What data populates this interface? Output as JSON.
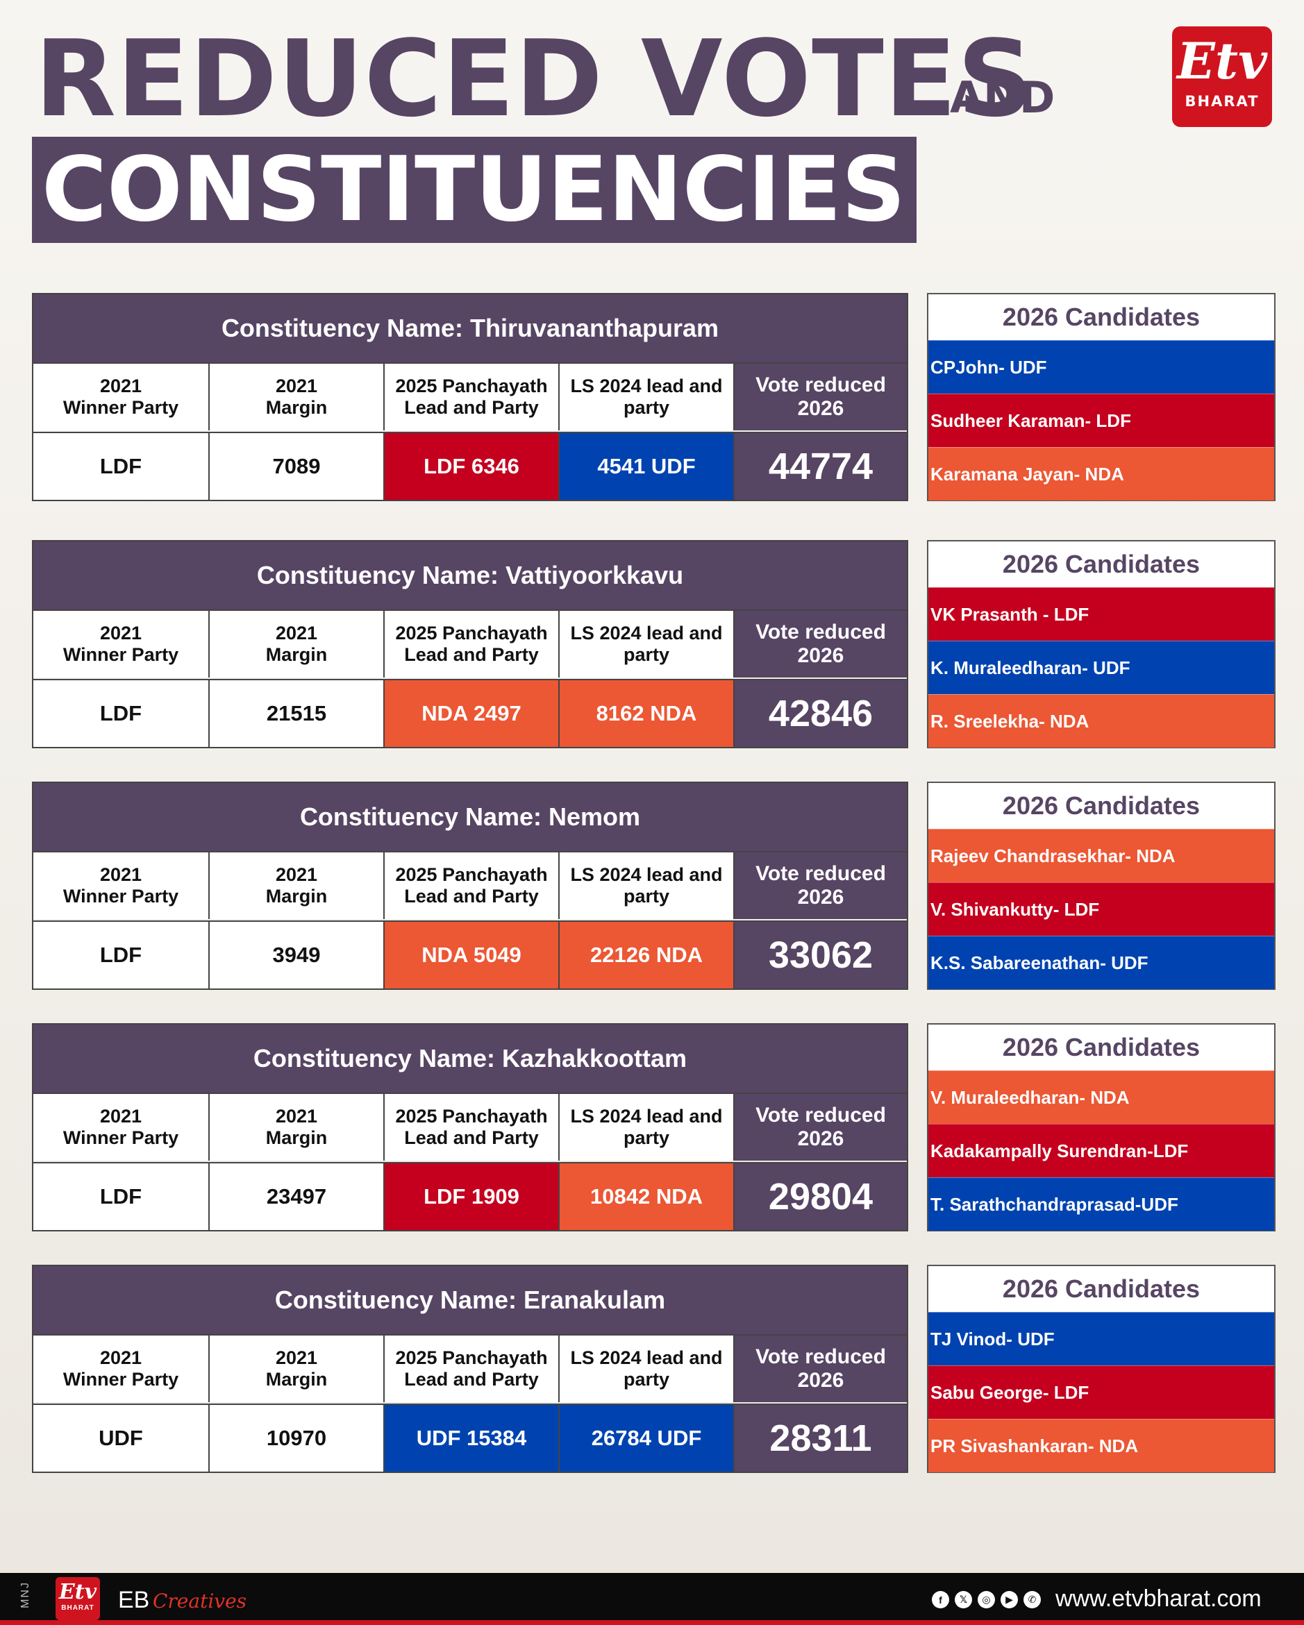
{
  "title": {
    "line1": "REDUCED VOTES",
    "and": "AND",
    "line2": "CONSTITUENCIES"
  },
  "logo": {
    "mark": "Etv",
    "word": "BHARAT"
  },
  "headers": {
    "winner": "2021\nWinner Party",
    "margin": "2021\nMargin",
    "panchayath": "2025 Panchayath\nLead and Party",
    "ls": "LS 2024 lead and\nparty",
    "vote": "Vote reduced\n2026",
    "candidates": "2026 Candidates"
  },
  "colors": {
    "ldf": "#c4001e",
    "udf": "#0043b0",
    "nda": "#ec5734",
    "purple": "#574564"
  },
  "constituencies": [
    {
      "name": "Constituency Name: Thiruvananthapuram",
      "winner": "LDF",
      "margin": "7089",
      "panchayath": "LDF 6346",
      "panchayath_party": "ldf",
      "ls": "4541 UDF",
      "ls_party": "udf",
      "vote": "44774",
      "candidates": [
        {
          "name": "CPJohn- UDF",
          "party": "udf"
        },
        {
          "name": "Sudheer Karaman- LDF",
          "party": "ldf"
        },
        {
          "name": "Karamana Jayan- NDA",
          "party": "nda"
        }
      ]
    },
    {
      "name": "Constituency Name: Vattiyoorkkavu",
      "winner": "LDF",
      "margin": "21515",
      "panchayath": "NDA 2497",
      "panchayath_party": "nda",
      "ls": "8162 NDA",
      "ls_party": "nda",
      "vote": "42846",
      "candidates": [
        {
          "name": "VK Prasanth - LDF",
          "party": "ldf"
        },
        {
          "name": "K. Muraleedharan- UDF",
          "party": "udf"
        },
        {
          "name": "R. Sreelekha- NDA",
          "party": "nda"
        }
      ]
    },
    {
      "name": "Constituency Name: Nemom",
      "winner": "LDF",
      "margin": "3949",
      "panchayath": "NDA 5049",
      "panchayath_party": "nda",
      "ls": "22126 NDA",
      "ls_party": "nda",
      "vote": "33062",
      "candidates": [
        {
          "name": "Rajeev Chandrasekhar- NDA",
          "party": "nda"
        },
        {
          "name": "V. Shivankutty- LDF",
          "party": "ldf"
        },
        {
          "name": "K.S. Sabareenathan- UDF",
          "party": "udf"
        }
      ]
    },
    {
      "name": "Constituency Name: Kazhakkoottam",
      "winner": "LDF",
      "margin": "23497",
      "panchayath": "LDF 1909",
      "panchayath_party": "ldf",
      "ls": "10842 NDA",
      "ls_party": "nda",
      "vote": "29804",
      "candidates": [
        {
          "name": "V. Muraleedharan- NDA",
          "party": "nda"
        },
        {
          "name": "Kadakampally Surendran-LDF",
          "party": "ldf"
        },
        {
          "name": "T. Sarathchandraprasad-UDF",
          "party": "udf"
        }
      ]
    },
    {
      "name": "Constituency Name: Eranakulam",
      "winner": "UDF",
      "margin": "10970",
      "panchayath": "UDF 15384",
      "panchayath_party": "udf",
      "ls": "26784 UDF",
      "ls_party": "udf",
      "vote": "28311",
      "candidates": [
        {
          "name": "TJ Vinod- UDF",
          "party": "udf"
        },
        {
          "name": "Sabu George- LDF",
          "party": "ldf"
        },
        {
          "name": "PR Sivashankaran- NDA",
          "party": "nda"
        }
      ]
    }
  ],
  "footer": {
    "credit": "MNJ",
    "logo_mark": "Etv",
    "logo_word": "BHARAT",
    "eb": "EB",
    "creatives": "Creatives",
    "socials": [
      "facebook-icon",
      "x-icon",
      "instagram-icon",
      "youtube-icon",
      "whatsapp-icon"
    ],
    "site": "www.etvbharat.com"
  }
}
